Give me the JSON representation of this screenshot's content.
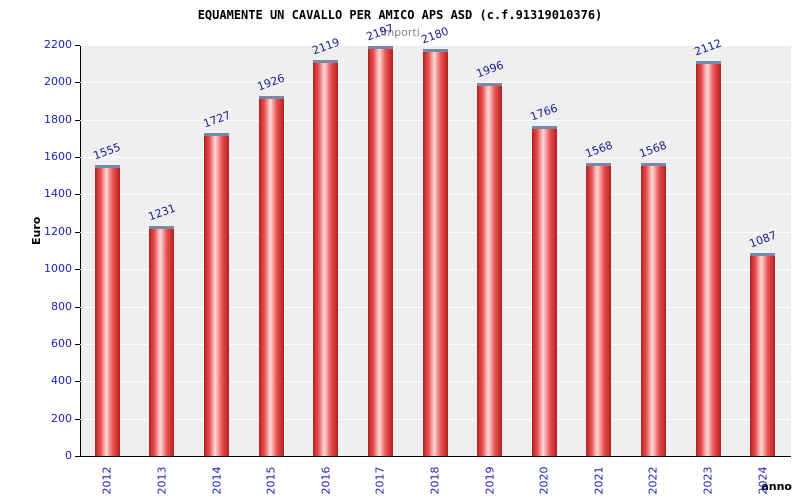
{
  "chart_data": {
    "type": "bar",
    "title": "EQUAMENTE UN CAVALLO PER AMICO APS ASD (c.f.91319010376)",
    "subtitle": "Importi",
    "xlabel": "anno",
    "ylabel": "Euro",
    "categories": [
      "2012",
      "2013",
      "2014",
      "2015",
      "2016",
      "2017",
      "2018",
      "2019",
      "2020",
      "2021",
      "2022",
      "2023",
      "2024"
    ],
    "values": [
      1555,
      1231,
      1727,
      1926,
      2119,
      2197,
      2180,
      1996,
      1766,
      1568,
      1568,
      2112,
      1087
    ],
    "ylim": [
      0,
      2200
    ],
    "yticks": [
      0,
      200,
      400,
      600,
      800,
      1000,
      1200,
      1400,
      1600,
      1800,
      2000,
      2200
    ],
    "grid": true,
    "legend_position": "none",
    "colors": {
      "bar_dark": "#b32020",
      "bar_light": "#ffd9d9",
      "bar_top_edge": "#7788aa",
      "value_label": "#1c1c8f",
      "axis_text": "#2020c0",
      "plot_background": "#efefef",
      "gridline": "#ffffff"
    }
  }
}
